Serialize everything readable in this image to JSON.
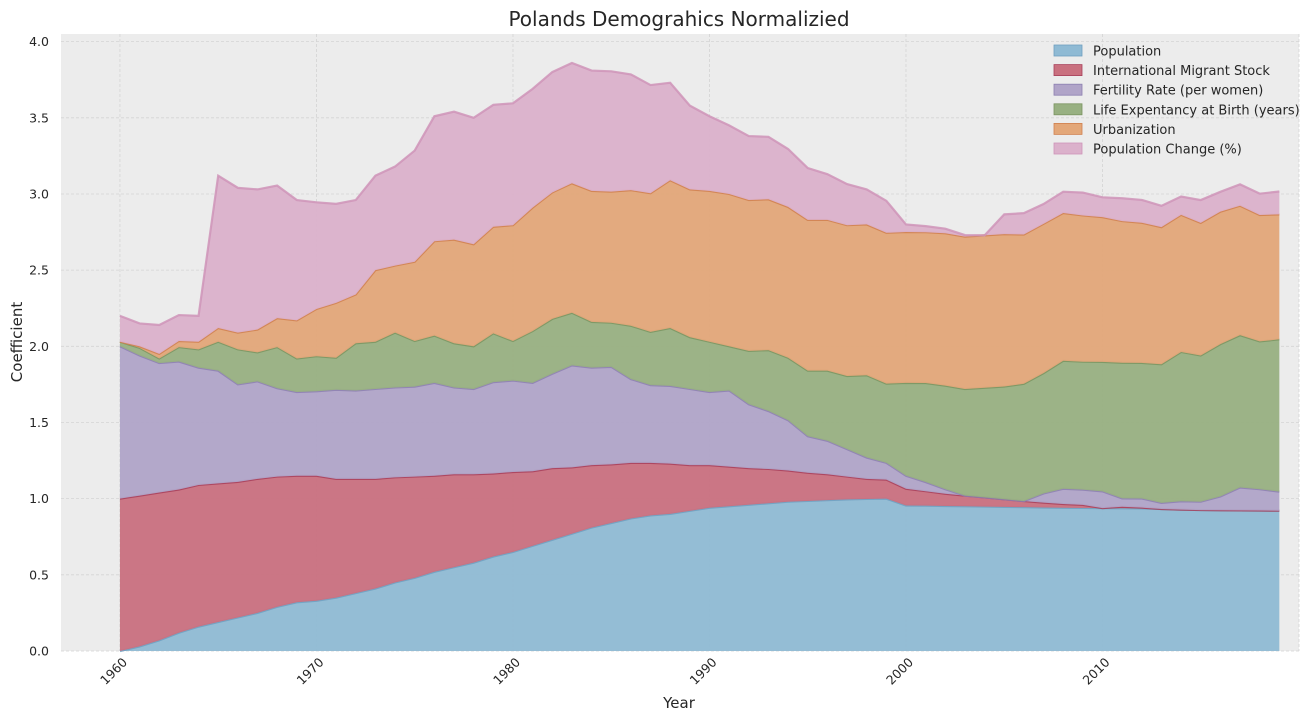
{
  "chart_data": {
    "type": "area",
    "stacked": true,
    "title": "Polands Demograhics Normalizied",
    "xlabel": "Year",
    "ylabel": "Coefficient",
    "xlim": [
      1957,
      2020
    ],
    "ylim": [
      0,
      4.05
    ],
    "xticks": [
      1960,
      1970,
      1980,
      1990,
      2000,
      2010
    ],
    "yticks": [
      0.0,
      0.5,
      1.0,
      1.5,
      2.0,
      2.5,
      3.0,
      3.5,
      4.0
    ],
    "ytick_labels": [
      "0.0",
      "0.5",
      "1.0",
      "1.5",
      "2.0",
      "2.5",
      "3.0",
      "3.5",
      "4.0"
    ],
    "grid": true,
    "legend_position": "upper-right",
    "x": [
      1960,
      1961,
      1962,
      1963,
      1964,
      1965,
      1966,
      1967,
      1968,
      1969,
      1970,
      1971,
      1972,
      1973,
      1974,
      1975,
      1976,
      1977,
      1978,
      1979,
      1980,
      1981,
      1982,
      1983,
      1984,
      1985,
      1986,
      1987,
      1988,
      1989,
      1990,
      1991,
      1992,
      1993,
      1994,
      1995,
      1996,
      1997,
      1998,
      1999,
      2000,
      2001,
      2002,
      2003,
      2004,
      2005,
      2006,
      2007,
      2008,
      2009,
      2010,
      2011,
      2012,
      2013,
      2014,
      2015,
      2016,
      2017,
      2018,
      2019
    ],
    "series": [
      {
        "name": "Population",
        "color": "#8fbad4",
        "line": "#6f9fc0",
        "values": [
          0.0,
          0.03,
          0.07,
          0.12,
          0.16,
          0.19,
          0.22,
          0.25,
          0.29,
          0.32,
          0.33,
          0.35,
          0.38,
          0.41,
          0.45,
          0.48,
          0.52,
          0.55,
          0.58,
          0.62,
          0.65,
          0.69,
          0.73,
          0.77,
          0.81,
          0.84,
          0.87,
          0.89,
          0.9,
          0.92,
          0.94,
          0.95,
          0.96,
          0.97,
          0.98,
          0.985,
          0.99,
          0.995,
          0.998,
          1.0,
          0.955,
          0.954,
          0.952,
          0.95,
          0.948,
          0.946,
          0.944,
          0.942,
          0.94,
          0.939,
          0.938,
          0.937,
          0.936,
          0.932,
          0.928,
          0.925,
          0.924,
          0.923,
          0.922,
          0.921
        ]
      },
      {
        "name": "International Migrant Stock",
        "color": "#c9707f",
        "line": "#a8405a",
        "values": [
          1.0,
          0.99,
          0.97,
          0.94,
          0.93,
          0.91,
          0.89,
          0.88,
          0.855,
          0.83,
          0.82,
          0.78,
          0.75,
          0.72,
          0.69,
          0.665,
          0.63,
          0.61,
          0.58,
          0.545,
          0.525,
          0.49,
          0.47,
          0.435,
          0.41,
          0.385,
          0.365,
          0.345,
          0.33,
          0.3,
          0.28,
          0.26,
          0.24,
          0.225,
          0.205,
          0.185,
          0.17,
          0.15,
          0.132,
          0.125,
          0.11,
          0.095,
          0.08,
          0.07,
          0.06,
          0.05,
          0.04,
          0.032,
          0.025,
          0.02,
          0.0,
          0.01,
          0.005,
          0.0,
          0.0,
          0.0,
          0.0,
          0.0,
          0.0,
          0.0
        ]
      },
      {
        "name": "Fertility Rate (per women)",
        "color": "#b0a4c8",
        "line": "#8c7fb0",
        "values": [
          1.0,
          0.92,
          0.85,
          0.84,
          0.77,
          0.74,
          0.64,
          0.64,
          0.58,
          0.55,
          0.555,
          0.585,
          0.58,
          0.59,
          0.59,
          0.59,
          0.61,
          0.57,
          0.56,
          0.6,
          0.6,
          0.58,
          0.62,
          0.67,
          0.64,
          0.64,
          0.55,
          0.51,
          0.51,
          0.5,
          0.48,
          0.5,
          0.42,
          0.38,
          0.33,
          0.24,
          0.22,
          0.18,
          0.14,
          0.11,
          0.085,
          0.06,
          0.03,
          0.0,
          0.0,
          0.0,
          0.0,
          0.06,
          0.1,
          0.1,
          0.11,
          0.055,
          0.06,
          0.04,
          0.055,
          0.055,
          0.09,
          0.15,
          0.14,
          0.125
        ]
      },
      {
        "name": "Life Expentancy at Birth (years)",
        "color": "#98b082",
        "line": "#7a9460",
        "values": [
          0.03,
          0.05,
          0.03,
          0.095,
          0.12,
          0.19,
          0.23,
          0.19,
          0.27,
          0.22,
          0.23,
          0.21,
          0.31,
          0.31,
          0.36,
          0.3,
          0.31,
          0.29,
          0.28,
          0.32,
          0.26,
          0.34,
          0.36,
          0.345,
          0.3,
          0.29,
          0.35,
          0.35,
          0.38,
          0.34,
          0.33,
          0.29,
          0.35,
          0.4,
          0.41,
          0.43,
          0.46,
          0.48,
          0.54,
          0.52,
          0.61,
          0.65,
          0.68,
          0.7,
          0.72,
          0.74,
          0.77,
          0.79,
          0.84,
          0.84,
          0.85,
          0.89,
          0.89,
          0.91,
          0.98,
          0.96,
          1.0,
          1.0,
          0.97,
          1.0
        ]
      },
      {
        "name": "Urbanization",
        "color": "#e3a779",
        "line": "#d0804f",
        "values": [
          0.0,
          0.01,
          0.03,
          0.04,
          0.05,
          0.09,
          0.11,
          0.15,
          0.19,
          0.25,
          0.31,
          0.36,
          0.32,
          0.47,
          0.44,
          0.52,
          0.62,
          0.68,
          0.67,
          0.7,
          0.76,
          0.81,
          0.83,
          0.85,
          0.86,
          0.86,
          0.89,
          0.91,
          0.97,
          0.97,
          0.99,
          1.0,
          0.99,
          0.99,
          0.99,
          0.99,
          0.99,
          0.99,
          0.99,
          0.99,
          0.99,
          0.99,
          1.0,
          1.0,
          1.0,
          1.0,
          0.98,
          0.98,
          0.97,
          0.96,
          0.95,
          0.93,
          0.92,
          0.9,
          0.9,
          0.87,
          0.87,
          0.85,
          0.83,
          0.82
        ]
      },
      {
        "name": "Population Change (%)",
        "color": "#dbb1cb",
        "line": "#cf94b8",
        "values": [
          0.17,
          0.15,
          0.19,
          0.17,
          0.17,
          1.0,
          0.95,
          0.92,
          0.87,
          0.79,
          0.7,
          0.65,
          0.62,
          0.62,
          0.65,
          0.73,
          0.82,
          0.84,
          0.83,
          0.8,
          0.8,
          0.78,
          0.79,
          0.79,
          0.79,
          0.79,
          0.76,
          0.71,
          0.64,
          0.55,
          0.49,
          0.45,
          0.42,
          0.41,
          0.38,
          0.34,
          0.3,
          0.27,
          0.23,
          0.21,
          0.05,
          0.04,
          0.03,
          0.01,
          0.0,
          0.13,
          0.14,
          0.13,
          0.14,
          0.15,
          0.13,
          0.15,
          0.15,
          0.14,
          0.12,
          0.15,
          0.13,
          0.14,
          0.14,
          0.15
        ]
      }
    ]
  }
}
